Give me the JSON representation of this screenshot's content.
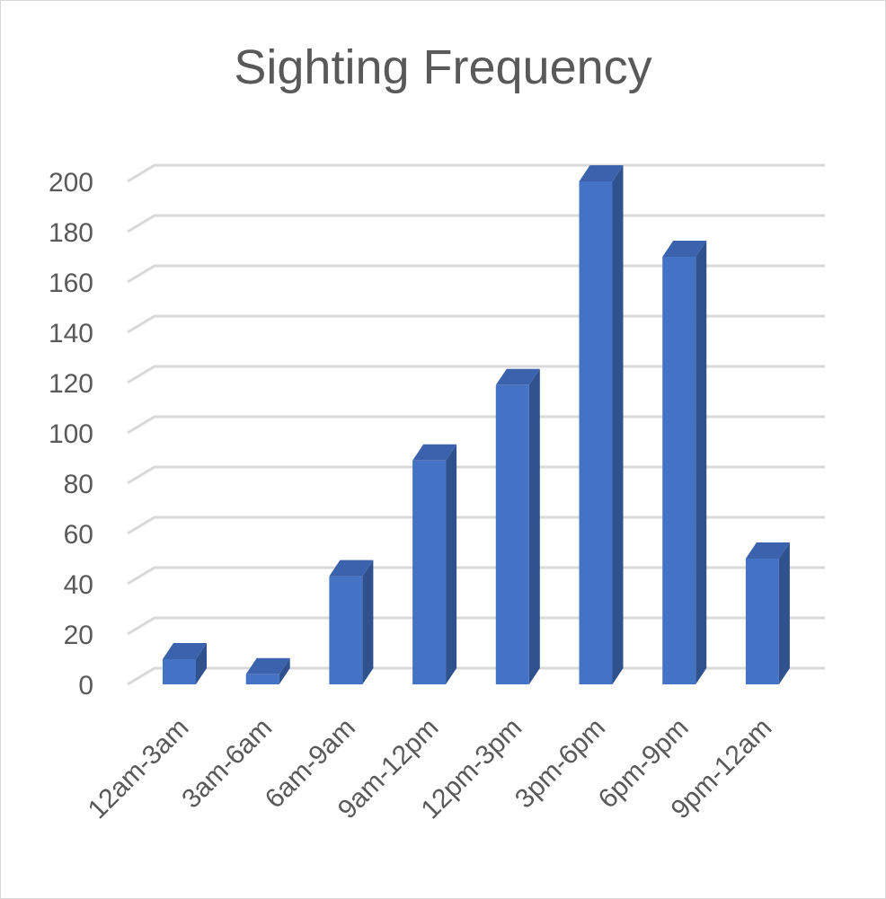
{
  "chart_data": {
    "type": "bar",
    "title": "Sighting Frequency",
    "categories": [
      "12am-3am",
      "3am-6am",
      "6am-9am",
      "9am-12pm",
      "12pm-3pm",
      "3pm-6pm",
      "6pm-9pm",
      "9pm-12am"
    ],
    "series": [
      {
        "values": [
          10,
          4,
          43,
          89,
          119,
          200,
          170,
          50
        ]
      }
    ],
    "ylim": [
      0,
      200
    ],
    "yticks": [
      0,
      20,
      40,
      60,
      80,
      100,
      120,
      140,
      160,
      180,
      200
    ],
    "xlabel": "",
    "ylabel": "",
    "grid": true,
    "legend": "none",
    "style": "3d-column",
    "colors": {
      "bar_front": "#4472c4",
      "bar_side": "#2f528f",
      "bar_top": "#3b63ad",
      "gridline": "#d9d9d9",
      "text": "#595959"
    }
  }
}
